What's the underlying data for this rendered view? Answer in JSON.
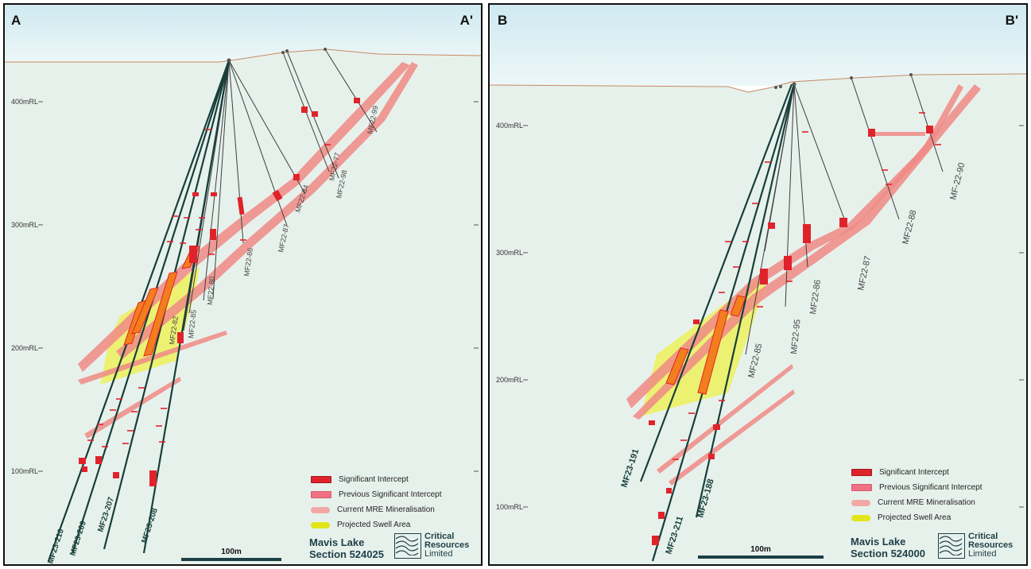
{
  "panels": [
    {
      "id": "a",
      "corner_left": "A",
      "corner_right": "A'",
      "rl_labels": [
        "400mRL",
        "300mRL",
        "200mRL",
        "100mRL"
      ],
      "holes": [
        "MF22-99",
        "MF22-77",
        "MF22-98",
        "MF22-84",
        "MF22-87",
        "MF22-86",
        "MF22-80",
        "MF22-85",
        "MF22-82",
        "MF23-210",
        "MF23-209",
        "MF23-207",
        "MF23-208"
      ],
      "scale_label": "100m",
      "title_line1": "Mavis Lake",
      "title_line2": "Section 524025"
    },
    {
      "id": "b",
      "corner_left": "B",
      "corner_right": "B'",
      "rl_labels": [
        "400mRL",
        "300mRL",
        "200mRL",
        "100mRL"
      ],
      "holes": [
        "MF-22-90",
        "MF22-88",
        "MF22-87",
        "MF22-86",
        "MF22-95",
        "MF22-85",
        "MF23-191",
        "MF23-211",
        "MF23-188"
      ],
      "scale_label": "100m",
      "title_line1": "Mavis Lake",
      "title_line2": "Section 524000"
    }
  ],
  "legend": [
    {
      "label": "Significant Intercept",
      "swatch": "sig"
    },
    {
      "label": "Previous Significant Intercept",
      "swatch": "prev"
    },
    {
      "label": "Current MRE Mineralisation",
      "swatch": "mre"
    },
    {
      "label": "Projected Swell Area",
      "swatch": "swell"
    }
  ],
  "logo": {
    "line1": "Critical",
    "line2": "Resources",
    "line3": "Limited"
  },
  "colors": {
    "sky_top": "#d3ecf2",
    "ground": "#e7f1ec",
    "topo_line": "#c78a62",
    "drill_trace": "#173f3a",
    "old_trace": "#3e3e3e",
    "mre": "#f08a86",
    "swell": "#eef04a",
    "significant": "#e0232b",
    "orange_intercept": "#f27e1d"
  }
}
